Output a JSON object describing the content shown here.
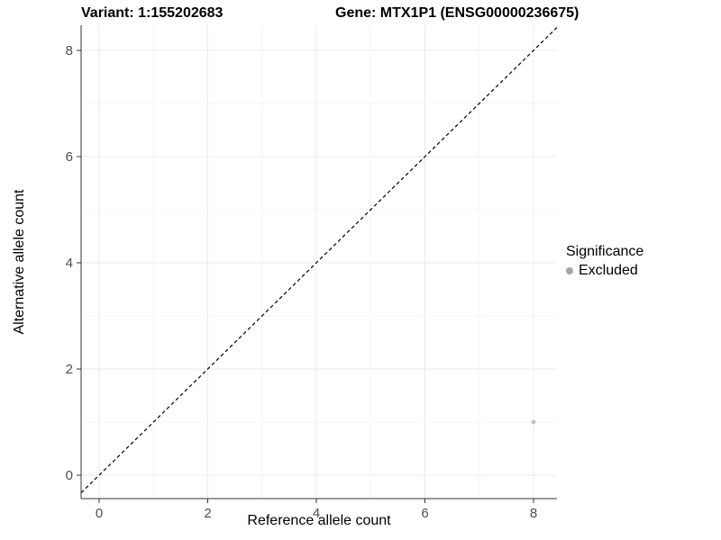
{
  "chart_data": {
    "type": "scatter",
    "titles": {
      "left": "Variant: 1:155202683",
      "right": "Gene: MTX1P1 (ENSG00000236675)"
    },
    "xlabel": "Reference allele count",
    "ylabel": "Alternative allele count",
    "xlim": [
      -0.33,
      8.43
    ],
    "ylim": [
      -0.45,
      8.47
    ],
    "x_ticks": [
      0,
      2,
      4,
      6,
      8
    ],
    "y_ticks": [
      0,
      2,
      4,
      6,
      8
    ],
    "x_minor_ticks": [
      1,
      3,
      5,
      7
    ],
    "y_minor_ticks": [
      1,
      3,
      5,
      7
    ],
    "grid": "major and minor, light gray on white",
    "reference_line": {
      "type": "identity",
      "slope": 1,
      "intercept": 0,
      "style": "dashed",
      "color": "#000000"
    },
    "series": [
      {
        "name": "Excluded",
        "color": "#c2c2c2",
        "points": [
          {
            "x": 8,
            "y": 1
          }
        ]
      }
    ],
    "legend": {
      "title": "Significance",
      "position": "right",
      "entries": [
        {
          "label": "Excluded",
          "color": "#a6a6a6"
        }
      ]
    },
    "colors": {
      "background": "#ffffff",
      "grid_major": "#ebebeb",
      "grid_minor": "#f6f6f6",
      "axis_line": "#333333",
      "tick_label": "#4d4d4d",
      "title_text": "#000000"
    }
  }
}
